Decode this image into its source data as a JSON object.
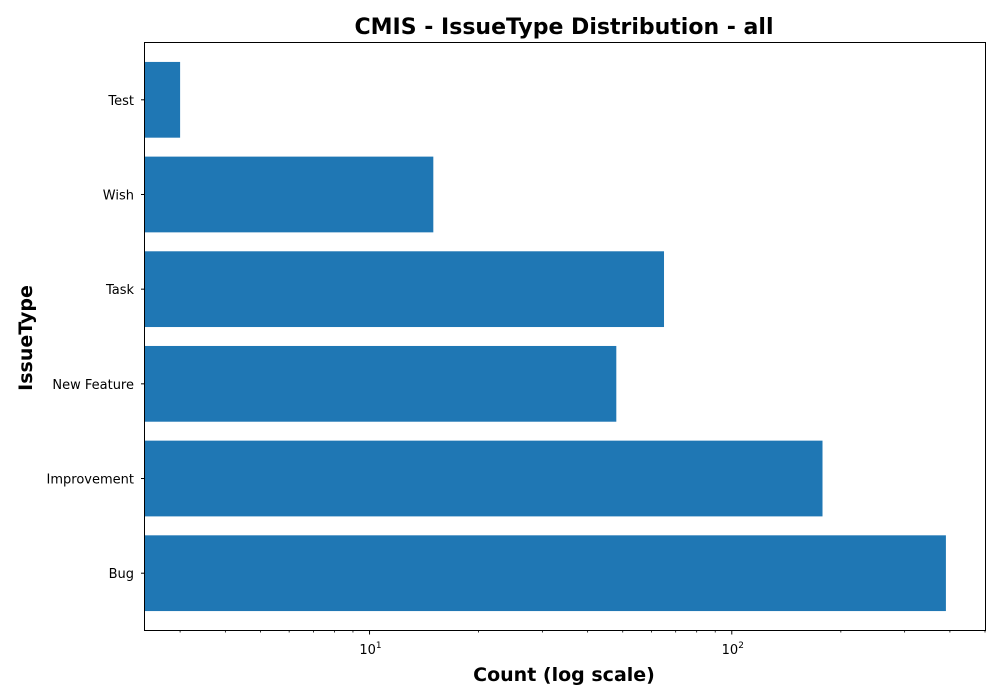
{
  "chart_data": {
    "type": "bar",
    "orientation": "horizontal",
    "title": "CMIS - IssueType Distribution - all",
    "xlabel": "Count (log scale)",
    "ylabel": "IssueType",
    "x_scale": "log",
    "xlim": [
      2.4,
      500
    ],
    "x_ticks": [
      {
        "value": 10,
        "base": "10",
        "exponent": "1"
      },
      {
        "value": 100,
        "base": "10",
        "exponent": "2"
      }
    ],
    "categories": [
      "Bug",
      "Improvement",
      "New Feature",
      "Task",
      "Wish",
      "Test"
    ],
    "values": [
      390,
      178,
      48,
      65,
      15,
      3
    ],
    "bar_color": "#1f77b4",
    "grid": false,
    "legend": "none"
  }
}
